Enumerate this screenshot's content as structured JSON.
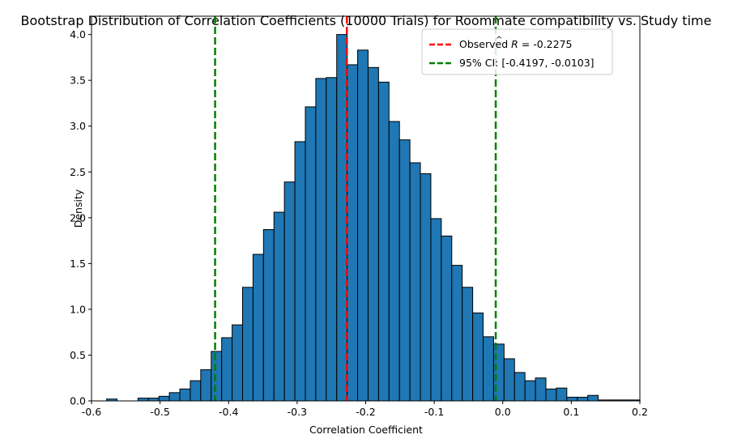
{
  "chart_data": {
    "type": "bar",
    "subtype": "histogram",
    "title": "Bootstrap Distribution of Correlation Coefficients (10000 Trials) for Roommate compatibility vs. Study time",
    "xlabel": "Correlation Coefficient",
    "ylabel": "Density",
    "xlim": [
      -0.6,
      0.2
    ],
    "ylim": [
      0,
      4.2
    ],
    "x_ticks": [
      "-0.6",
      "-0.5",
      "-0.4",
      "-0.3",
      "-0.2",
      "-0.1",
      "0.0",
      "0.1",
      "0.2"
    ],
    "y_ticks": [
      "0.0",
      "0.5",
      "1.0",
      "1.5",
      "2.0",
      "2.5",
      "3.0",
      "3.5",
      "4.0"
    ],
    "bin_start": -0.578,
    "bin_width": 0.01526,
    "values": [
      0.02,
      0.0,
      0.0,
      0.03,
      0.03,
      0.05,
      0.09,
      0.13,
      0.22,
      0.34,
      0.54,
      0.69,
      0.83,
      1.24,
      1.6,
      1.87,
      2.06,
      2.39,
      2.83,
      3.21,
      3.52,
      3.53,
      4.0,
      3.67,
      3.83,
      3.64,
      3.48,
      3.05,
      2.85,
      2.6,
      2.48,
      1.99,
      1.8,
      1.48,
      1.24,
      0.96,
      0.7,
      0.62,
      0.46,
      0.31,
      0.22,
      0.25,
      0.13,
      0.14,
      0.04,
      0.04,
      0.06,
      0.01,
      0.01,
      0.01,
      0.01
    ],
    "bar_color": "#1f77b4",
    "edge_color": "#000000",
    "vlines": [
      {
        "x": -0.2275,
        "color": "#ff0000",
        "style": "dashed"
      },
      {
        "x": -0.4197,
        "color": "#008000",
        "style": "dashed"
      },
      {
        "x": -0.0103,
        "color": "#008000",
        "style": "dashed"
      }
    ],
    "legend": {
      "position": "top-right",
      "entries": [
        {
          "label_prefix": "Observed ",
          "label_symbol": "R",
          "label_suffix": " = -0.2275",
          "color": "#ff0000",
          "style": "dashed"
        },
        {
          "label": "95% CI: [-0.4197, -0.0103]",
          "color": "#008000",
          "style": "dashed"
        }
      ]
    },
    "grid": false
  }
}
